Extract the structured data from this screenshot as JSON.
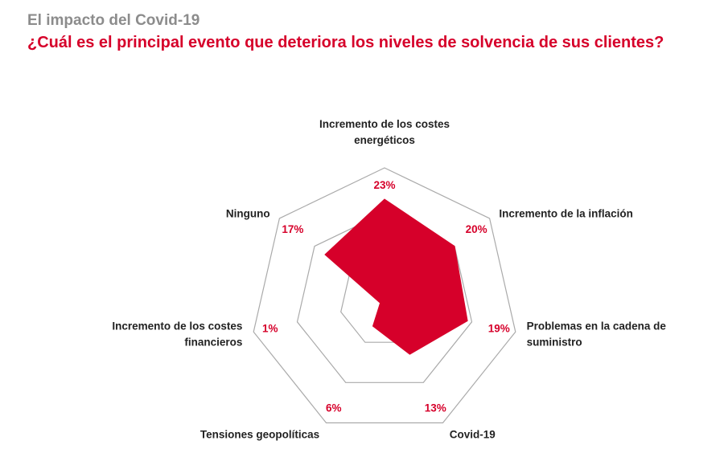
{
  "header": {
    "supertitle": "El impacto del Covid-19",
    "title": "¿Cuál es el principal evento que deteriora los niveles de solvencia de sus clientes?"
  },
  "chart_data": {
    "type": "radar",
    "categories": [
      [
        "Incremento de los costes",
        "energéticos"
      ],
      [
        "Incremento de la inflación"
      ],
      [
        "Problemas en la cadena de",
        "suministro"
      ],
      [
        "Covid-19"
      ],
      [
        "Tensiones geopolíticas"
      ],
      [
        "Incremento de los costes",
        "financieros"
      ],
      [
        "Ninguno"
      ]
    ],
    "values": [
      23,
      20,
      19,
      13,
      6,
      1,
      17
    ],
    "value_labels": [
      "23%",
      "20%",
      "19%",
      "13%",
      "6%",
      "1%",
      "17%"
    ],
    "unit": "%",
    "rlim": [
      0,
      30
    ],
    "grid_rings": 3,
    "fill_color": "#d6002a",
    "label_color": "#d6002a",
    "grid_color": "#aaaaaa"
  }
}
